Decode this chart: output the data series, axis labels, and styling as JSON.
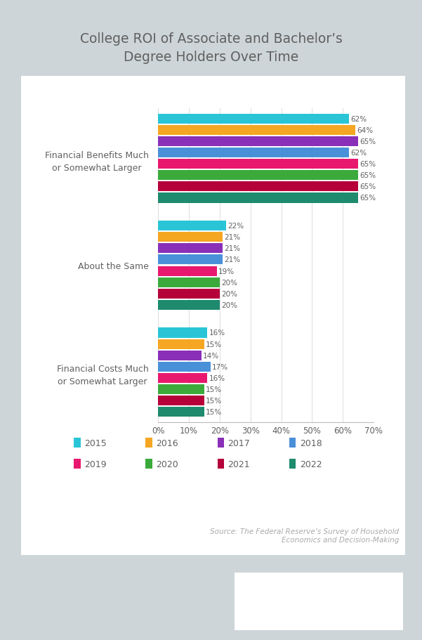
{
  "title": "College ROI of Associate and Bachelor’s\nDegree Holders Over Time",
  "categories": [
    "Financial Benefits Much\nor Somewhat Larger",
    "About the Same",
    "Financial Costs Much\nor Somewhat Larger"
  ],
  "years": [
    "2015",
    "2016",
    "2017",
    "2018",
    "2019",
    "2020",
    "2021",
    "2022"
  ],
  "colors": [
    "#29C5D6",
    "#F5A623",
    "#8A30B8",
    "#4A90D9",
    "#E8186E",
    "#3BAA3B",
    "#B5003A",
    "#1E8A6E"
  ],
  "values_benefits": [
    62,
    64,
    65,
    62,
    65,
    65,
    65,
    65
  ],
  "values_same": [
    22,
    21,
    21,
    21,
    19,
    20,
    20,
    20
  ],
  "values_costs": [
    16,
    15,
    14,
    17,
    16,
    15,
    15,
    15
  ],
  "xlim_max": 70,
  "xticks": [
    0,
    10,
    20,
    30,
    40,
    50,
    60,
    70
  ],
  "source": "Source: The Federal Reserve’s Survey of Household\nEconomics and Decision-Making",
  "bg_outer": "#CDD5D8",
  "bg_chart": "#FFFFFF",
  "title_color": "#606060",
  "axis_label_color": "#606060",
  "value_label_color": "#606060",
  "source_color": "#AAAAAA",
  "logo_color1": "#1A2B5E",
  "logo_color2": "#1E8A8A"
}
